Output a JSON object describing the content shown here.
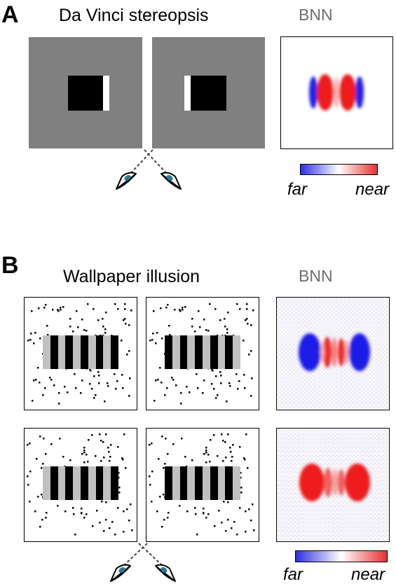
{
  "panel_a": {
    "letter": "A",
    "title": "Da Vinci stereopsis",
    "model_label": "BNN",
    "colorbar": {
      "left_label": "far",
      "right_label": "near",
      "colors": [
        "#2f2fe0",
        "#ffffff",
        "#e83030"
      ]
    }
  },
  "panel_b": {
    "letter": "B",
    "title": "Wallpaper illusion",
    "model_label": "BNN",
    "colorbar": {
      "left_label": "far",
      "right_label": "near",
      "colors": [
        "#2f2fe0",
        "#ffffff",
        "#e83030"
      ]
    }
  },
  "colors": {
    "stimulus_gray": "#808080",
    "grating_gray": "#c0c0c0",
    "far": "#2020e6",
    "near": "#ee1a1a"
  },
  "icons": [
    "eyes-icon"
  ]
}
